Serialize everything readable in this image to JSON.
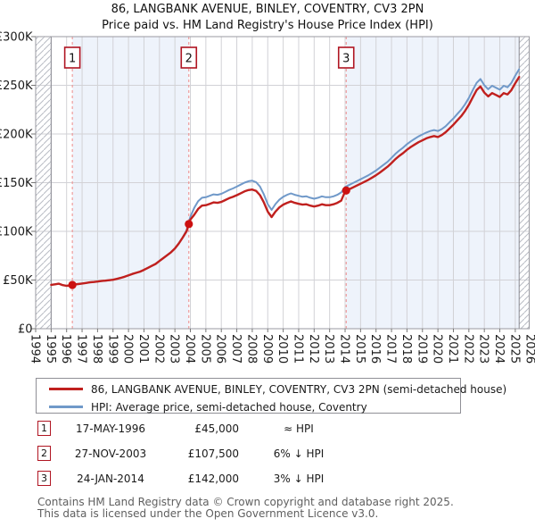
{
  "colors": {
    "property_line": "#c0201e",
    "hpi_line": "#7099c9",
    "sale_dot": "#cc1111",
    "marker_border": "#b01522",
    "dashed_line": "#ef8a8a",
    "band_fill": "#eef3fb",
    "grid_line": "#d2d2d6",
    "boundary_line": "#8a8a92",
    "hatch_line": "#b8bcc4",
    "plot_border": "#9a9aa0",
    "tick_mark": "#777777",
    "footer_text": "#5f5f5f",
    "text": "#1a1a1a"
  },
  "chart_data": {
    "type": "line",
    "title": "86, LANGBANK AVENUE, BINLEY, COVENTRY, CV3 2PN",
    "subtitle": "Price paid vs. HM Land Registry's House Price Index (HPI)",
    "xlabel": "",
    "ylabel": "",
    "ylim": [
      0,
      300
    ],
    "xlim": [
      1994,
      2025.9
    ],
    "grid": true,
    "legend_position": "below",
    "yticks": [
      {
        "v": 0,
        "label": "£0"
      },
      {
        "v": 50,
        "label": "£50K"
      },
      {
        "v": 100,
        "label": "£100K"
      },
      {
        "v": 150,
        "label": "£150K"
      },
      {
        "v": 200,
        "label": "£200K"
      },
      {
        "v": 250,
        "label": "£250K"
      },
      {
        "v": 300,
        "label": "£300K"
      }
    ],
    "xticks": [
      1994,
      1995,
      1996,
      1997,
      1998,
      1999,
      2000,
      2001,
      2002,
      2003,
      2004,
      2005,
      2006,
      2007,
      2008,
      2009,
      2010,
      2011,
      2012,
      2013,
      2014,
      2015,
      2016,
      2017,
      2018,
      2019,
      2020,
      2021,
      2022,
      2023,
      2024,
      2025,
      2026
    ],
    "hatch_regions": [
      [
        1994,
        1995
      ],
      [
        2025.25,
        2025.9
      ]
    ],
    "ownership_bands": [
      [
        1996.37,
        2003.9
      ],
      [
        2014.07,
        2025.25
      ]
    ],
    "x_start": 1995.0,
    "x_step": 0.25,
    "series": [
      {
        "name": "property",
        "values": [
          45.0,
          45.6,
          46.2,
          44.8,
          44.0,
          44.6,
          45.4,
          45.9,
          46.4,
          47.0,
          47.6,
          48.0,
          48.4,
          49.0,
          49.4,
          49.8,
          50.3,
          51.2,
          52.2,
          53.4,
          54.8,
          56.2,
          57.4,
          58.6,
          60.5,
          62.5,
          64.5,
          66.5,
          69.5,
          72.5,
          75.5,
          78.5,
          82.5,
          87.5,
          93.5,
          100.0,
          112.0,
          117.0,
          123.0,
          126.4,
          126.9,
          128.3,
          129.7,
          129.3,
          130.2,
          132.1,
          134.0,
          135.4,
          137.2,
          139.1,
          141.0,
          142.4,
          142.9,
          141.5,
          137.2,
          129.7,
          120.3,
          114.7,
          120.3,
          124.6,
          127.4,
          129.3,
          130.7,
          129.3,
          128.3,
          127.4,
          127.8,
          126.4,
          125.5,
          126.4,
          127.8,
          126.9,
          126.9,
          127.8,
          129.3,
          131.6,
          141.0,
          143.1,
          145.0,
          147.0,
          148.9,
          150.8,
          152.8,
          155.2,
          157.6,
          160.5,
          163.4,
          166.4,
          170.2,
          174.1,
          177.5,
          180.4,
          183.8,
          186.7,
          189.2,
          191.6,
          193.5,
          195.5,
          196.9,
          197.9,
          196.9,
          198.9,
          201.8,
          205.6,
          209.5,
          213.9,
          218.3,
          223.6,
          229.9,
          237.7,
          245.0,
          248.8,
          242.5,
          238.6,
          242.0,
          240.1,
          238.1,
          242.0,
          240.6,
          245.0,
          252.2,
          258.5
        ]
      },
      {
        "name": "hpi",
        "values": [
          45.0,
          45.6,
          46.2,
          44.8,
          44.0,
          44.6,
          45.4,
          45.9,
          46.4,
          47.0,
          47.6,
          48.0,
          48.4,
          49.0,
          49.4,
          49.8,
          50.3,
          51.2,
          52.2,
          53.4,
          54.8,
          56.2,
          57.4,
          58.6,
          60.5,
          62.5,
          64.5,
          66.5,
          69.5,
          72.5,
          75.5,
          78.5,
          82.5,
          87.5,
          93.5,
          101.0,
          115.0,
          124.0,
          131.0,
          134.5,
          135.0,
          136.5,
          138.0,
          137.5,
          138.5,
          140.5,
          142.5,
          144.0,
          146.0,
          148.0,
          150.0,
          151.5,
          152.0,
          150.5,
          146.0,
          138.0,
          128.0,
          122.0,
          128.0,
          132.5,
          135.5,
          137.5,
          139.0,
          137.5,
          136.5,
          135.5,
          136.0,
          134.5,
          133.5,
          134.5,
          136.0,
          135.0,
          135.0,
          136.0,
          137.5,
          140.0,
          145.5,
          147.5,
          149.5,
          151.5,
          153.5,
          155.5,
          157.5,
          160.0,
          162.5,
          165.5,
          168.5,
          171.5,
          175.5,
          179.5,
          183.0,
          186.0,
          189.5,
          192.5,
          195.0,
          197.5,
          199.5,
          201.5,
          203.0,
          204.0,
          203.0,
          205.0,
          208.0,
          212.0,
          216.0,
          220.5,
          225.0,
          230.5,
          237.0,
          245.0,
          252.5,
          256.5,
          250.0,
          246.0,
          249.5,
          247.5,
          245.5,
          249.5,
          248.0,
          252.5,
          260.0,
          266.5
        ]
      }
    ],
    "sales": [
      {
        "label": "1",
        "year_frac": 1996.37,
        "price_k": 45.0
      },
      {
        "label": "2",
        "year_frac": 2003.9,
        "price_k": 107.5
      },
      {
        "label": "3",
        "year_frac": 2014.07,
        "price_k": 142.0
      }
    ],
    "legend": [
      {
        "series": "property",
        "label": "86, LANGBANK AVENUE, BINLEY, COVENTRY, CV3 2PN (semi-detached house)"
      },
      {
        "series": "hpi",
        "label": "HPI: Average price, semi-detached house, Coventry"
      }
    ]
  },
  "sales_table": {
    "rows": [
      {
        "num": "1",
        "date": "17-MAY-1996",
        "price": "£45,000",
        "vs_hpi": "≈ HPI"
      },
      {
        "num": "2",
        "date": "27-NOV-2003",
        "price": "£107,500",
        "vs_hpi": "6% ↓ HPI"
      },
      {
        "num": "3",
        "date": "24-JAN-2014",
        "price": "£142,000",
        "vs_hpi": "3% ↓ HPI"
      }
    ]
  },
  "footer": {
    "line1": "Contains HM Land Registry data © Crown copyright and database right 2025.",
    "line2": "This data is licensed under the Open Government Licence v3.0."
  }
}
